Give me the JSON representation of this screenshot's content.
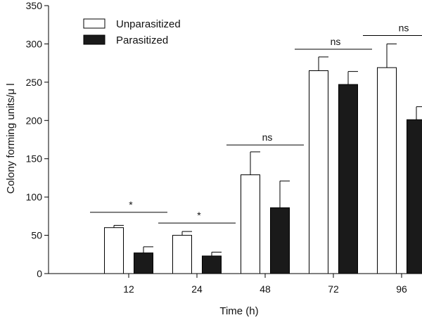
{
  "chart_data": {
    "type": "bar",
    "title": "",
    "xlabel": "Time (h)",
    "ylabel": "Colony forming units/μ l",
    "ylim": [
      0,
      350
    ],
    "yticks": [
      0,
      50,
      100,
      150,
      200,
      250,
      300,
      350
    ],
    "categories": [
      "12",
      "24",
      "48",
      "72",
      "96"
    ],
    "series": [
      {
        "name": "Unparasitized",
        "color": "#ffffff",
        "values": [
          60,
          50,
          129,
          265,
          269
        ],
        "errors": [
          3,
          5,
          30,
          18,
          31
        ]
      },
      {
        "name": "Parasitized",
        "color": "#1a1a1a",
        "values": [
          27,
          23,
          86,
          247,
          201
        ],
        "errors": [
          8,
          5,
          35,
          17,
          17
        ]
      }
    ],
    "significance": [
      {
        "category": "12",
        "label": "*",
        "level": 80
      },
      {
        "category": "24",
        "label": "*",
        "level": 66
      },
      {
        "category": "48",
        "label": "ns",
        "level": 168
      },
      {
        "category": "72",
        "label": "ns",
        "level": 293
      },
      {
        "category": "96",
        "label": "ns",
        "level": 311
      }
    ],
    "legend_position": "top-left"
  }
}
